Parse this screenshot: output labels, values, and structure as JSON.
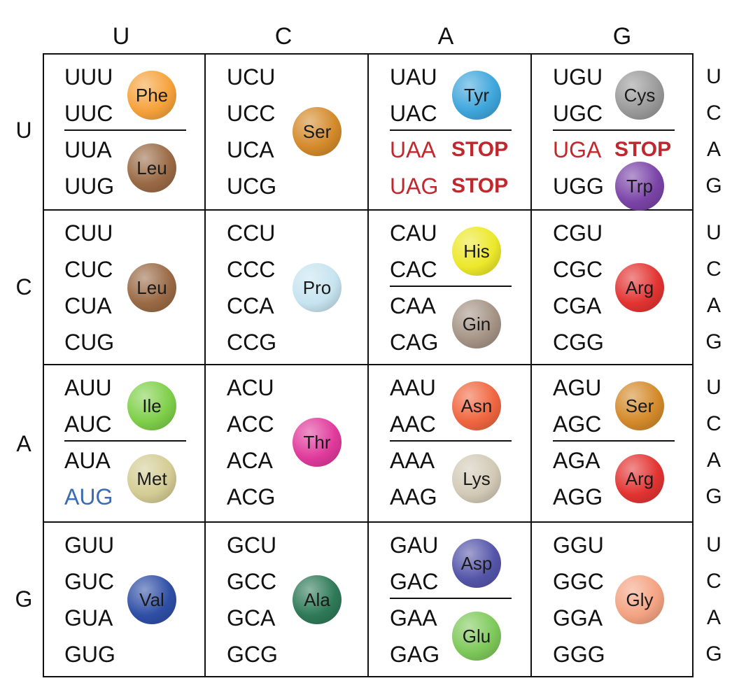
{
  "headers": {
    "second_position": [
      "U",
      "C",
      "A",
      "G"
    ],
    "first_position": [
      "U",
      "C",
      "A",
      "G"
    ],
    "third_position": [
      "U",
      "C",
      "A",
      "G"
    ]
  },
  "colors": {
    "stop": "#c0282d",
    "start": "#3b6bb0",
    "text": "#111111"
  },
  "amino_colors": {
    "Phe": "#f6a23c",
    "Leu": "#9a6a45",
    "Ser": "#d48a2a",
    "Tyr": "#3fa6dc",
    "Cys": "#9a9a9a",
    "Trp": "#7b44a8",
    "Pro": "#c6e4ef",
    "His": "#ece82a",
    "Gln": "#a59486",
    "Arg": "#e23432",
    "Ile": "#7fcf4a",
    "Met": "#d4cc94",
    "Thr": "#e03a9c",
    "Asn": "#f06640",
    "Lys": "#d2cab6",
    "Val": "#2f4fa6",
    "Ala": "#2e7a58",
    "Asp": "#5555aa",
    "Glu": "#7ec95a",
    "Gly": "#f4a382"
  },
  "blocks": [
    [
      {
        "codons": [
          "UUU",
          "UUC",
          "UUA",
          "UUG"
        ],
        "groups": [
          {
            "aa": "Phe",
            "label": "Phe",
            "rows": [
              0,
              1
            ]
          },
          {
            "aa": "Leu",
            "label": "Leu",
            "rows": [
              2,
              3
            ]
          }
        ],
        "stops": [],
        "start": -1
      },
      {
        "codons": [
          "UCU",
          "UCC",
          "UCA",
          "UCG"
        ],
        "groups": [
          {
            "aa": "Ser",
            "label": "Ser",
            "rows": [
              0,
              1,
              2,
              3
            ]
          }
        ],
        "stops": [],
        "start": -1
      },
      {
        "codons": [
          "UAU",
          "UAC",
          "UAA",
          "UAG"
        ],
        "groups": [
          {
            "aa": "Tyr",
            "label": "Tyr",
            "rows": [
              0,
              1
            ]
          }
        ],
        "stops": [
          {
            "row": 2,
            "label": "STOP"
          },
          {
            "row": 3,
            "label": "STOP"
          }
        ],
        "start": -1
      },
      {
        "codons": [
          "UGU",
          "UGC",
          "UGA",
          "UGG"
        ],
        "groups": [
          {
            "aa": "Cys",
            "label": "Cys",
            "rows": [
              0,
              1
            ]
          },
          {
            "aa": "Trp",
            "label": "Trp",
            "rows": [
              3
            ]
          }
        ],
        "stops": [
          {
            "row": 2,
            "label": "STOP"
          }
        ],
        "start": -1
      }
    ],
    [
      {
        "codons": [
          "CUU",
          "CUC",
          "CUA",
          "CUG"
        ],
        "groups": [
          {
            "aa": "Leu",
            "label": "Leu",
            "rows": [
              0,
              1,
              2,
              3
            ]
          }
        ],
        "stops": [],
        "start": -1
      },
      {
        "codons": [
          "CCU",
          "CCC",
          "CCA",
          "CCG"
        ],
        "groups": [
          {
            "aa": "Pro",
            "label": "Pro",
            "rows": [
              0,
              1,
              2,
              3
            ]
          }
        ],
        "stops": [],
        "start": -1
      },
      {
        "codons": [
          "CAU",
          "CAC",
          "CAA",
          "CAG"
        ],
        "groups": [
          {
            "aa": "His",
            "label": "His",
            "rows": [
              0,
              1
            ]
          },
          {
            "aa": "Gln",
            "label": "Gin",
            "rows": [
              2,
              3
            ]
          }
        ],
        "stops": [],
        "start": -1
      },
      {
        "codons": [
          "CGU",
          "CGC",
          "CGA",
          "CGG"
        ],
        "groups": [
          {
            "aa": "Arg",
            "label": "Arg",
            "rows": [
              0,
              1,
              2,
              3
            ]
          }
        ],
        "stops": [],
        "start": -1
      }
    ],
    [
      {
        "codons": [
          "AUU",
          "AUC",
          "AUA",
          "AUG"
        ],
        "groups": [
          {
            "aa": "Ile",
            "label": "Ile",
            "rows": [
              0,
              1
            ]
          },
          {
            "aa": "Met",
            "label": "Met",
            "rows": [
              2,
              3
            ]
          }
        ],
        "stops": [],
        "start": 3
      },
      {
        "codons": [
          "ACU",
          "ACC",
          "ACA",
          "ACG"
        ],
        "groups": [
          {
            "aa": "Thr",
            "label": "Thr",
            "rows": [
              0,
              1,
              2,
              3
            ]
          }
        ],
        "stops": [],
        "start": -1
      },
      {
        "codons": [
          "AAU",
          "AAC",
          "AAA",
          "AAG"
        ],
        "groups": [
          {
            "aa": "Asn",
            "label": "Asn",
            "rows": [
              0,
              1
            ]
          },
          {
            "aa": "Lys",
            "label": "Lys",
            "rows": [
              2,
              3
            ]
          }
        ],
        "stops": [],
        "start": -1
      },
      {
        "codons": [
          "AGU",
          "AGC",
          "AGA",
          "AGG"
        ],
        "groups": [
          {
            "aa": "Ser",
            "label": "Ser",
            "rows": [
              0,
              1
            ]
          },
          {
            "aa": "Arg",
            "label": "Arg",
            "rows": [
              2,
              3
            ]
          }
        ],
        "stops": [],
        "start": -1
      }
    ],
    [
      {
        "codons": [
          "GUU",
          "GUC",
          "GUA",
          "GUG"
        ],
        "groups": [
          {
            "aa": "Val",
            "label": "Val",
            "rows": [
              0,
              1,
              2,
              3
            ]
          }
        ],
        "stops": [],
        "start": -1
      },
      {
        "codons": [
          "GCU",
          "GCC",
          "GCA",
          "GCG"
        ],
        "groups": [
          {
            "aa": "Ala",
            "label": "Ala",
            "rows": [
              0,
              1,
              2,
              3
            ]
          }
        ],
        "stops": [],
        "start": -1
      },
      {
        "codons": [
          "GAU",
          "GAC",
          "GAA",
          "GAG"
        ],
        "groups": [
          {
            "aa": "Asp",
            "label": "Asp",
            "rows": [
              0,
              1
            ]
          },
          {
            "aa": "Glu",
            "label": "Glu",
            "rows": [
              2,
              3
            ]
          }
        ],
        "stops": [],
        "start": -1
      },
      {
        "codons": [
          "GGU",
          "GGC",
          "GGA",
          "GGG"
        ],
        "groups": [
          {
            "aa": "Gly",
            "label": "Gly",
            "rows": [
              0,
              1,
              2,
              3
            ]
          }
        ],
        "stops": [],
        "start": -1
      }
    ]
  ]
}
